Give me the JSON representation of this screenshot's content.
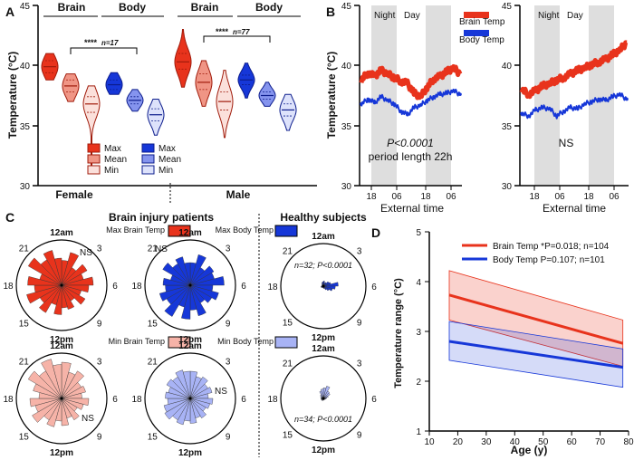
{
  "colors": {
    "brain": "#e8331c",
    "brain_light": "#f3a08f",
    "brain_pale": "#f6b3a8",
    "body": "#1637d8",
    "body_light": "#8f9cf0",
    "body_pale": "#a8b3f5",
    "shade": "#dedede"
  },
  "panelA": {
    "label": "A",
    "ylabel": "Temperature (°C)",
    "yticks": [
      "30",
      "35",
      "40",
      "45"
    ],
    "group_labels": [
      "Brain",
      "Body",
      "Brain",
      "Body"
    ],
    "sex_labels": [
      "Female",
      "Male"
    ],
    "sig_female": "****",
    "n_female": "n=17",
    "sig_male": "****",
    "n_male": "n=77",
    "legend_brain": [
      "Max",
      "Mean",
      "Min"
    ],
    "legend_body": [
      "Max",
      "Mean",
      "Min"
    ]
  },
  "panelB": {
    "label": "B",
    "ylabel": "Temperature (°C)",
    "yticks": [
      "30",
      "35",
      "40",
      "45"
    ],
    "xticks": [
      "18",
      "06",
      "18",
      "06"
    ],
    "xlabel": "External time",
    "night": "Night",
    "day": "Day",
    "legend_brain": "Brain Temp",
    "legend_body": "Body Temp",
    "stat_left_1": "P<0.0001",
    "stat_left_2": "period length 22h",
    "stat_right": "NS"
  },
  "panelC": {
    "label": "C",
    "title_patients": "Brain injury patients",
    "title_healthy": "Healthy subjects",
    "legend_max_brain": "Max Brain Temp",
    "legend_max_body": "Max Body Temp",
    "legend_min_brain": "Min Brain Temp",
    "legend_min_body": "Min Body Temp",
    "hours": [
      "12am",
      "3",
      "6",
      "9",
      "12pm",
      "15",
      "18",
      "21"
    ],
    "ns": "NS",
    "healthy_top": "n=32; P<0.0001",
    "healthy_bottom": "n=34; P<0.0001"
  },
  "panelD": {
    "label": "D",
    "ylabel": "Temperature range  (°C)",
    "xlabel": "Age (y)",
    "xticks": [
      "10",
      "20",
      "30",
      "40",
      "50",
      "60",
      "70",
      "80"
    ],
    "yticks": [
      "1",
      "2",
      "3",
      "4",
      "5"
    ],
    "legend_brain": "Brain Temp *P=0.018; n=104",
    "legend_body": "Body Temp P=0.107; n=101"
  },
  "chart_data": [
    {
      "type": "violin",
      "panel": "A",
      "ylabel": "Temperature (°C)",
      "ylim": [
        30,
        45
      ],
      "categories": [
        "Female Brain Max",
        "Female Brain Mean",
        "Female Brain Min",
        "Female Body Max",
        "Female Body Mean",
        "Female Body Min",
        "Male Brain Max",
        "Male Brain Mean",
        "Male Brain Min",
        "Male Body Max",
        "Male Body Mean",
        "Male Body Min"
      ],
      "medians": [
        39.9,
        38.3,
        36.8,
        38.4,
        37.1,
        35.9,
        40.3,
        38.6,
        37.0,
        38.8,
        37.5,
        36.3
      ],
      "q1": [
        39.4,
        37.8,
        36.1,
        38.0,
        36.8,
        35.4,
        39.7,
        38.0,
        36.3,
        38.4,
        37.2,
        35.8
      ],
      "q3": [
        40.4,
        38.8,
        37.4,
        38.8,
        37.4,
        36.4,
        41.0,
        39.3,
        37.8,
        39.2,
        37.8,
        36.8
      ],
      "min": [
        38.8,
        37.0,
        31.6,
        37.6,
        36.2,
        34.2,
        38.2,
        36.6,
        34.0,
        37.3,
        36.6,
        34.6
      ],
      "max": [
        41.0,
        39.3,
        38.3,
        39.4,
        38.0,
        37.2,
        43.0,
        40.4,
        39.6,
        40.2,
        38.6,
        37.6
      ]
    },
    {
      "type": "line",
      "panel": "B-left",
      "ylabel": "Temperature (°C)",
      "xlabel": "External time",
      "ylim": [
        30,
        45
      ],
      "x_hours": [
        0,
        3,
        6,
        9,
        12,
        15,
        18,
        21,
        24,
        27,
        30,
        33,
        36,
        39,
        42,
        45
      ],
      "series": [
        {
          "name": "Brain Temp",
          "values": [
            38.8,
            39.4,
            39.1,
            39.6,
            39.3,
            39.0,
            38.7,
            38.5,
            37.7,
            37.4,
            38.2,
            38.9,
            39.1,
            39.5,
            39.8,
            39.3
          ]
        },
        {
          "name": "Body Temp",
          "values": [
            36.8,
            37.2,
            36.9,
            37.4,
            37.1,
            36.8,
            36.2,
            35.9,
            36.5,
            36.7,
            37.1,
            37.4,
            37.6,
            37.7,
            37.9,
            37.6
          ]
        }
      ]
    },
    {
      "type": "line",
      "panel": "B-right",
      "xlabel": "External time",
      "ylim": [
        30,
        45
      ],
      "x_hours": [
        0,
        3,
        6,
        9,
        12,
        15,
        18,
        21,
        24,
        27,
        30,
        33,
        36,
        39,
        42,
        45
      ],
      "series": [
        {
          "name": "Brain Temp",
          "values": [
            38.0,
            37.6,
            37.9,
            38.3,
            38.5,
            38.8,
            39.0,
            39.3,
            39.6,
            39.8,
            40.1,
            40.3,
            40.5,
            40.9,
            41.3,
            41.9
          ]
        },
        {
          "name": "Body Temp",
          "values": [
            36.0,
            35.8,
            36.3,
            36.5,
            36.4,
            35.8,
            36.2,
            36.5,
            36.4,
            36.8,
            37.0,
            37.2,
            37.1,
            37.4,
            37.6,
            37.2
          ]
        }
      ]
    },
    {
      "type": "rose",
      "panel": "C",
      "bins_hours": [
        0,
        1,
        2,
        3,
        4,
        5,
        6,
        7,
        8,
        9,
        10,
        11,
        12,
        13,
        14,
        15,
        16,
        17,
        18,
        19,
        20,
        21,
        22,
        23
      ],
      "series": [
        {
          "name": "Max Brain Temp",
          "values": [
            0.55,
            0.75,
            0.45,
            0.65,
            0.5,
            0.7,
            0.6,
            0.45,
            0.6,
            0.4,
            0.55,
            0.5,
            0.65,
            0.45,
            0.7,
            0.55,
            0.8,
            0.6,
            0.75,
            0.5,
            0.85,
            0.65,
            0.8,
            0.6
          ]
        },
        {
          "name": "Max Body Temp",
          "values": [
            0.5,
            0.7,
            0.45,
            0.6,
            0.55,
            0.75,
            0.5,
            0.65,
            0.55,
            0.45,
            0.7,
            0.55,
            0.75,
            0.5,
            0.8,
            0.6,
            0.7,
            0.55,
            0.6,
            0.45,
            0.7,
            0.55,
            0.65,
            0.5
          ]
        },
        {
          "name": "Healthy Max Body Temp",
          "values": [
            0.12,
            0.08,
            0.1,
            0.15,
            0.18,
            0.35,
            0.28,
            0.22,
            0.15,
            0.1,
            0.06,
            0.05,
            0.04,
            0.03,
            0.04,
            0.05,
            0.06,
            0.05,
            0.04,
            0.03,
            0.04,
            0.05,
            0.08,
            0.1
          ]
        },
        {
          "name": "Min Brain Temp",
          "values": [
            0.8,
            0.6,
            0.7,
            0.5,
            0.55,
            0.45,
            0.6,
            0.5,
            0.4,
            0.55,
            0.45,
            0.6,
            0.5,
            0.65,
            0.55,
            0.75,
            0.6,
            0.7,
            0.5,
            0.65,
            0.85,
            0.7,
            0.9,
            0.75
          ]
        },
        {
          "name": "Min Body Temp",
          "values": [
            0.6,
            0.5,
            0.55,
            0.45,
            0.5,
            0.4,
            0.5,
            0.45,
            0.4,
            0.5,
            0.45,
            0.55,
            0.5,
            0.6,
            0.55,
            0.65,
            0.6,
            0.5,
            0.55,
            0.5,
            0.6,
            0.55,
            0.65,
            0.6
          ]
        },
        {
          "name": "Healthy Min Body Temp",
          "values": [
            0.25,
            0.3,
            0.2,
            0.18,
            0.12,
            0.08,
            0.06,
            0.05,
            0.04,
            0.03,
            0.04,
            0.03,
            0.05,
            0.04,
            0.06,
            0.05,
            0.06,
            0.05,
            0.06,
            0.05,
            0.08,
            0.1,
            0.18,
            0.22
          ]
        }
      ]
    },
    {
      "type": "line",
      "panel": "D",
      "xlabel": "Age (y)",
      "ylabel": "Temperature range  (°C)",
      "xlim": [
        10,
        80
      ],
      "ylim": [
        1,
        5
      ],
      "series": [
        {
          "name": "Brain Temp",
          "x": [
            17,
            78
          ],
          "values": [
            3.73,
            2.76
          ],
          "ci_low": [
            3.23,
            2.3
          ],
          "ci_high": [
            4.22,
            3.23
          ]
        },
        {
          "name": "Body Temp",
          "x": [
            17,
            78
          ],
          "values": [
            2.8,
            2.28
          ],
          "ci_low": [
            2.42,
            1.88
          ],
          "ci_high": [
            3.2,
            2.65
          ]
        }
      ]
    }
  ]
}
